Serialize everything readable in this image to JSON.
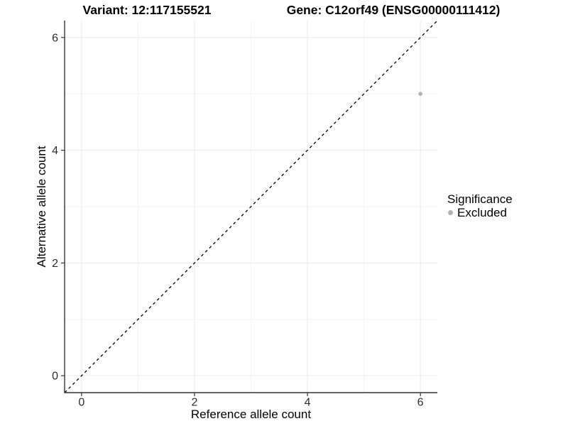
{
  "chart_data": {
    "type": "scatter",
    "title_left": "Variant: 12:117155521",
    "title_right": "Gene: C12orf49 (ENSG00000111412)",
    "xlabel": "Reference allele count",
    "ylabel": "Alternative allele count",
    "xlim": [
      -0.3,
      6.3
    ],
    "ylim": [
      -0.3,
      6.3
    ],
    "x_major_ticks": [
      0,
      2,
      4,
      6
    ],
    "y_major_ticks": [
      0,
      2,
      4,
      6
    ],
    "x_minor_ticks": [
      1,
      3,
      5
    ],
    "y_minor_ticks": [
      1,
      3,
      5
    ],
    "grid": true,
    "reference_line": {
      "style": "dashed",
      "from": [
        -0.3,
        -0.3
      ],
      "to": [
        6.3,
        6.3
      ],
      "color": "#000000",
      "meaning": "identity line y = x"
    },
    "series": [
      {
        "name": "Excluded",
        "color": "#b3b3b3",
        "points": [
          {
            "x": 6,
            "y": 5
          }
        ]
      }
    ],
    "legend": {
      "title": "Significance",
      "position": "right",
      "items": [
        {
          "label": "Excluded",
          "color": "#b3b3b3"
        }
      ]
    }
  },
  "colors": {
    "background": "#ffffff",
    "grid_major": "#e9e9e9",
    "grid_minor": "#f3f3f3",
    "axis_line": "#333333",
    "tick_mark": "#333333",
    "tick_label": "#2e2e2e",
    "axis_title": "#000000",
    "title": "#000000"
  }
}
